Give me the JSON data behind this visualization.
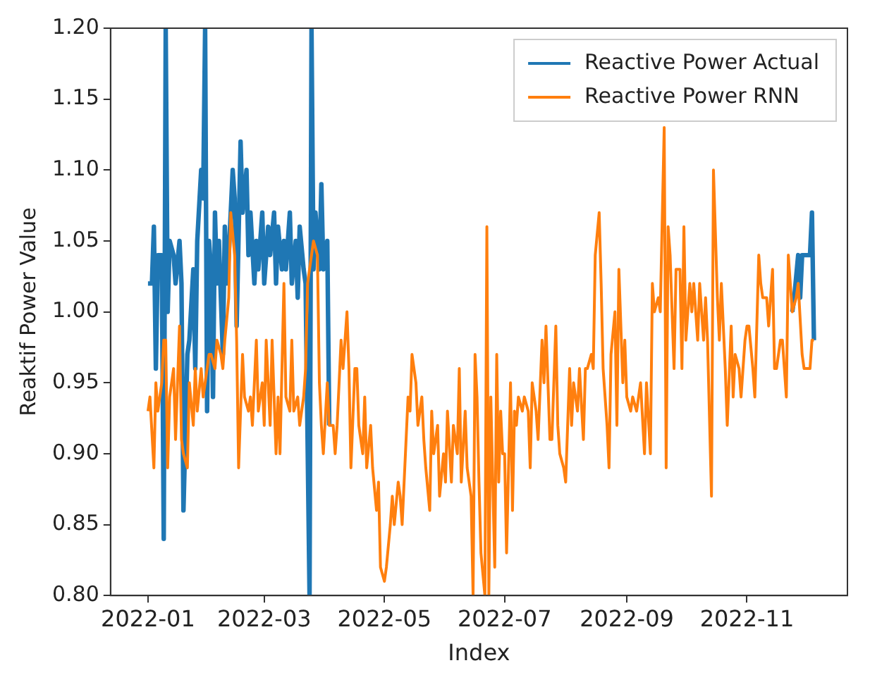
{
  "chart_data": {
    "type": "line",
    "xlabel": "Index",
    "ylabel": "Reaktif Power Value",
    "xlim": [
      "2021-12-13",
      "2022-12-22"
    ],
    "xticks": [
      {
        "value": "2022-01-01",
        "label": "2022-01"
      },
      {
        "value": "2022-03-01",
        "label": "2022-03"
      },
      {
        "value": "2022-05-01",
        "label": "2022-05"
      },
      {
        "value": "2022-07-01",
        "label": "2022-07"
      },
      {
        "value": "2022-09-01",
        "label": "2022-09"
      },
      {
        "value": "2022-11-01",
        "label": "2022-11"
      }
    ],
    "ylim": [
      0.8,
      1.2
    ],
    "yticks": [
      {
        "value": 0.8,
        "label": "0.80"
      },
      {
        "value": 0.85,
        "label": "0.85"
      },
      {
        "value": 0.9,
        "label": "0.90"
      },
      {
        "value": 0.95,
        "label": "0.95"
      },
      {
        "value": 1.0,
        "label": "1.00"
      },
      {
        "value": 1.05,
        "label": "1.05"
      },
      {
        "value": 1.1,
        "label": "1.10"
      },
      {
        "value": 1.15,
        "label": "1.15"
      },
      {
        "value": 1.2,
        "label": "1.20"
      }
    ],
    "grid": false,
    "legend": "top right",
    "series": [
      {
        "name": "Reactive Power Actual",
        "color": "#1f77b4",
        "x": [
          "2022-01-01",
          "2022-01-03",
          "2022-01-04",
          "2022-01-05",
          "2022-01-06",
          "2022-01-08",
          "2022-01-09",
          "2022-01-10",
          "2022-01-11",
          "2022-01-12",
          "2022-01-14",
          "2022-01-15",
          "2022-01-17",
          "2022-01-18",
          "2022-01-19",
          "2022-01-21",
          "2022-01-22",
          "2022-01-24",
          "2022-01-25",
          "2022-01-26",
          "2022-01-28",
          "2022-01-29",
          "2022-01-30",
          "2022-01-31",
          "2022-02-01",
          "2022-02-02",
          "2022-02-03",
          "2022-02-04",
          "2022-02-05",
          "2022-02-06",
          "2022-02-08",
          "2022-02-09",
          "2022-02-10",
          "2022-02-11",
          "2022-02-13",
          "2022-02-14",
          "2022-02-15",
          "2022-02-17",
          "2022-02-18",
          "2022-02-20",
          "2022-02-21",
          "2022-02-22",
          "2022-02-24",
          "2022-02-25",
          "2022-02-26",
          "2022-02-28",
          "2022-03-01",
          "2022-03-03",
          "2022-03-04",
          "2022-03-06",
          "2022-03-07",
          "2022-03-08",
          "2022-03-10",
          "2022-03-11",
          "2022-03-12",
          "2022-03-14",
          "2022-03-15",
          "2022-03-17",
          "2022-03-18",
          "2022-03-19",
          "2022-03-21",
          "2022-03-22",
          "2022-03-24",
          "2022-03-25",
          "2022-03-26",
          "2022-03-27",
          "2022-03-29",
          "2022-03-30",
          "2022-03-31",
          "2022-04-02",
          "2022-04-03",
          "2022-04-04",
          "2022-11-24",
          "2022-11-25",
          "2022-11-27",
          "2022-11-28",
          "2022-11-29",
          "2022-12-03",
          "2022-12-04",
          "2022-12-05"
        ],
        "values": [
          1.02,
          1.02,
          1.06,
          0.96,
          1.04,
          1.04,
          0.84,
          1.2,
          1.0,
          1.05,
          1.04,
          1.02,
          1.05,
          1.02,
          0.86,
          0.97,
          0.98,
          1.03,
          0.96,
          1.05,
          1.1,
          1.08,
          1.2,
          0.93,
          1.05,
          1.03,
          0.94,
          1.07,
          1.02,
          1.05,
          0.97,
          1.06,
          1.02,
          1.04,
          1.1,
          1.08,
          0.99,
          1.12,
          1.07,
          1.1,
          1.04,
          1.07,
          1.02,
          1.05,
          1.03,
          1.07,
          1.02,
          1.06,
          1.04,
          1.07,
          1.02,
          1.06,
          1.03,
          1.05,
          1.03,
          1.07,
          1.02,
          1.05,
          1.01,
          1.06,
          1.03,
          1.02,
          0.8,
          1.2,
          1.03,
          1.07,
          1.03,
          1.09,
          1.03,
          1.05,
          0.92,
          null,
          1.0,
          1.01,
          1.04,
          1.01,
          1.04,
          1.04,
          1.07,
          0.98
        ]
      },
      {
        "name": "Reactive Power RNN",
        "color": "#ff7f0e",
        "x": [
          "2022-01-01",
          "2022-01-02",
          "2022-01-04",
          "2022-01-05",
          "2022-01-06",
          "2022-01-08",
          "2022-01-09",
          "2022-01-10",
          "2022-01-11",
          "2022-01-12",
          "2022-01-14",
          "2022-01-15",
          "2022-01-17",
          "2022-01-18",
          "2022-01-19",
          "2022-01-21",
          "2022-01-22",
          "2022-01-24",
          "2022-01-25",
          "2022-01-26",
          "2022-01-28",
          "2022-01-29",
          "2022-01-31",
          "2022-02-01",
          "2022-02-02",
          "2022-02-04",
          "2022-02-05",
          "2022-02-07",
          "2022-02-08",
          "2022-02-09",
          "2022-02-11",
          "2022-02-12",
          "2022-02-14",
          "2022-02-15",
          "2022-02-16",
          "2022-02-18",
          "2022-02-19",
          "2022-02-21",
          "2022-02-22",
          "2022-02-23",
          "2022-02-25",
          "2022-02-26",
          "2022-02-28",
          "2022-03-01",
          "2022-03-02",
          "2022-03-04",
          "2022-03-05",
          "2022-03-07",
          "2022-03-08",
          "2022-03-09",
          "2022-03-11",
          "2022-03-12",
          "2022-03-14",
          "2022-03-15",
          "2022-03-16",
          "2022-03-18",
          "2022-03-19",
          "2022-03-21",
          "2022-03-22",
          "2022-03-23",
          "2022-03-25",
          "2022-03-26",
          "2022-03-28",
          "2022-03-29",
          "2022-03-30",
          "2022-03-31",
          "2022-04-02",
          "2022-04-03",
          "2022-04-05",
          "2022-04-06",
          "2022-04-07",
          "2022-04-09",
          "2022-04-10",
          "2022-04-12",
          "2022-04-13",
          "2022-04-14",
          "2022-04-16",
          "2022-04-17",
          "2022-04-18",
          "2022-04-20",
          "2022-04-21",
          "2022-04-22",
          "2022-04-24",
          "2022-04-25",
          "2022-04-27",
          "2022-04-28",
          "2022-04-29",
          "2022-05-01",
          "2022-05-02",
          "2022-05-04",
          "2022-05-05",
          "2022-05-06",
          "2022-05-08",
          "2022-05-09",
          "2022-05-10",
          "2022-05-12",
          "2022-05-13",
          "2022-05-14",
          "2022-05-15",
          "2022-05-17",
          "2022-05-18",
          "2022-05-20",
          "2022-05-21",
          "2022-05-22",
          "2022-05-24",
          "2022-05-25",
          "2022-05-26",
          "2022-05-28",
          "2022-05-29",
          "2022-05-31",
          "2022-06-01",
          "2022-06-02",
          "2022-06-04",
          "2022-06-05",
          "2022-06-07",
          "2022-06-08",
          "2022-06-09",
          "2022-06-11",
          "2022-06-12",
          "2022-06-14",
          "2022-06-15",
          "2022-06-16",
          "2022-06-17",
          "2022-06-18",
          "2022-06-19",
          "2022-06-21",
          "2022-06-22",
          "2022-06-23",
          "2022-06-24",
          "2022-06-25",
          "2022-06-26",
          "2022-06-27",
          "2022-06-28",
          "2022-06-29",
          "2022-06-30",
          "2022-07-01",
          "2022-07-02",
          "2022-07-04",
          "2022-07-05",
          "2022-07-06",
          "2022-07-07",
          "2022-07-08",
          "2022-07-10",
          "2022-07-11",
          "2022-07-13",
          "2022-07-14",
          "2022-07-15",
          "2022-07-17",
          "2022-07-18",
          "2022-07-20",
          "2022-07-21",
          "2022-07-22",
          "2022-07-24",
          "2022-07-25",
          "2022-07-27",
          "2022-07-28",
          "2022-07-29",
          "2022-07-31",
          "2022-08-01",
          "2022-08-03",
          "2022-08-04",
          "2022-08-05",
          "2022-08-07",
          "2022-08-08",
          "2022-08-10",
          "2022-08-11",
          "2022-08-12",
          "2022-08-14",
          "2022-08-15",
          "2022-08-16",
          "2022-08-18",
          "2022-08-19",
          "2022-08-20",
          "2022-08-22",
          "2022-08-23",
          "2022-08-24",
          "2022-08-26",
          "2022-08-27",
          "2022-08-28",
          "2022-08-30",
          "2022-08-31",
          "2022-09-01",
          "2022-09-03",
          "2022-09-04",
          "2022-09-06",
          "2022-09-07",
          "2022-09-08",
          "2022-09-10",
          "2022-09-11",
          "2022-09-13",
          "2022-09-14",
          "2022-09-15",
          "2022-09-17",
          "2022-09-18",
          "2022-09-20",
          "2022-09-21",
          "2022-09-22",
          "2022-09-23",
          "2022-09-25",
          "2022-09-26",
          "2022-09-28",
          "2022-09-29",
          "2022-09-30",
          "2022-10-01",
          "2022-10-03",
          "2022-10-04",
          "2022-10-05",
          "2022-10-07",
          "2022-10-08",
          "2022-10-10",
          "2022-10-11",
          "2022-10-12",
          "2022-10-14",
          "2022-10-15",
          "2022-10-17",
          "2022-10-18",
          "2022-10-19",
          "2022-10-21",
          "2022-10-22",
          "2022-10-24",
          "2022-10-25",
          "2022-10-26",
          "2022-10-28",
          "2022-10-29",
          "2022-10-31",
          "2022-11-01",
          "2022-11-02",
          "2022-11-04",
          "2022-11-05",
          "2022-11-07",
          "2022-11-08",
          "2022-11-09",
          "2022-11-11",
          "2022-11-12",
          "2022-11-14",
          "2022-11-15",
          "2022-11-16",
          "2022-11-18",
          "2022-11-19",
          "2022-11-21",
          "2022-11-22",
          "2022-11-23",
          "2022-11-24",
          "2022-11-26",
          "2022-11-27",
          "2022-11-29",
          "2022-11-30",
          "2022-12-02",
          "2022-12-03",
          "2022-12-04",
          "2022-12-05"
        ],
        "values": [
          0.93,
          0.94,
          0.89,
          0.95,
          0.93,
          0.95,
          0.98,
          0.98,
          0.89,
          0.94,
          0.96,
          0.91,
          0.99,
          0.91,
          0.9,
          0.89,
          0.95,
          0.92,
          0.96,
          0.93,
          0.96,
          0.94,
          0.96,
          0.97,
          0.97,
          0.96,
          0.98,
          0.97,
          0.96,
          0.98,
          1.01,
          1.07,
          1.04,
          0.98,
          0.89,
          0.97,
          0.94,
          0.93,
          0.94,
          0.92,
          0.98,
          0.93,
          0.95,
          0.92,
          0.98,
          0.92,
          0.98,
          0.9,
          0.94,
          0.9,
          1.02,
          0.94,
          0.93,
          0.98,
          0.93,
          0.94,
          0.92,
          0.94,
          0.96,
          1.02,
          1.04,
          1.05,
          1.04,
          0.95,
          0.92,
          0.9,
          0.95,
          0.92,
          0.92,
          0.9,
          0.92,
          0.98,
          0.96,
          1.0,
          0.96,
          0.89,
          0.96,
          0.96,
          0.92,
          0.9,
          0.94,
          0.89,
          0.92,
          0.89,
          0.86,
          0.88,
          0.82,
          0.81,
          0.82,
          0.85,
          0.87,
          0.85,
          0.88,
          0.87,
          0.85,
          0.91,
          0.94,
          0.93,
          0.97,
          0.95,
          0.92,
          0.94,
          0.91,
          0.89,
          0.86,
          0.93,
          0.9,
          0.92,
          0.87,
          0.9,
          0.88,
          0.93,
          0.88,
          0.92,
          0.9,
          0.96,
          0.88,
          0.93,
          0.89,
          0.87,
          0.8,
          0.97,
          0.94,
          0.88,
          0.83,
          0.8,
          1.06,
          0.8,
          0.94,
          0.88,
          0.82,
          0.97,
          0.88,
          0.93,
          0.9,
          0.9,
          0.83,
          0.95,
          0.86,
          0.93,
          0.92,
          0.94,
          0.93,
          0.94,
          0.93,
          0.89,
          0.95,
          0.93,
          0.91,
          0.98,
          0.95,
          0.99,
          0.91,
          0.91,
          0.99,
          0.92,
          0.9,
          0.89,
          0.88,
          0.96,
          0.92,
          0.95,
          0.93,
          0.96,
          0.91,
          0.96,
          0.96,
          0.97,
          0.96,
          1.04,
          1.07,
          1.02,
          0.96,
          0.92,
          0.89,
          0.97,
          1.0,
          0.92,
          1.03,
          0.95,
          0.98,
          0.94,
          0.93,
          0.94,
          0.93,
          0.94,
          0.95,
          0.9,
          0.95,
          0.9,
          1.02,
          1.0,
          1.01,
          1.0,
          1.13,
          0.89,
          1.06,
          1.04,
          0.96,
          1.03,
          1.03,
          0.96,
          1.06,
          0.98,
          1.02,
          1.0,
          1.02,
          0.98,
          1.02,
          0.98,
          1.01,
          0.98,
          0.87,
          1.1,
          1.01,
          0.98,
          1.02,
          0.96,
          0.92,
          0.99,
          0.94,
          0.97,
          0.96,
          0.94,
          0.98,
          0.99,
          0.99,
          0.96,
          0.94,
          1.04,
          1.02,
          1.01,
          1.01,
          0.99,
          1.03,
          0.96,
          0.96,
          0.98,
          0.98,
          0.94,
          1.04,
          1.02,
          1.0,
          1.01,
          1.02,
          0.97,
          0.96,
          0.96,
          0.96,
          0.98,
          0.98
        ]
      }
    ]
  }
}
